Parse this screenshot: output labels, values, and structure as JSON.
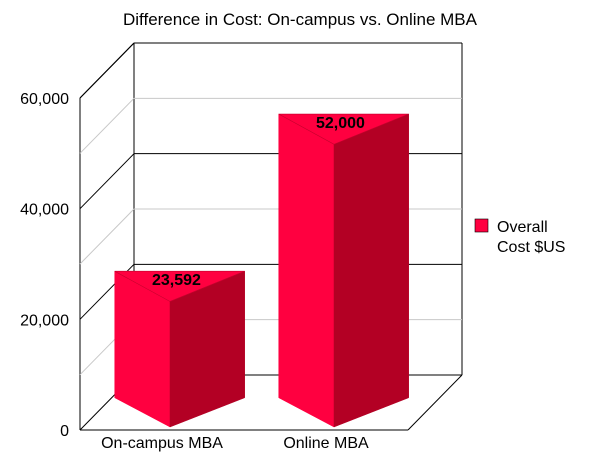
{
  "chart_data": {
    "type": "bar",
    "title": "Difference in Cost: On-campus vs. Online MBA",
    "categories": [
      "On-campus MBA",
      "Online MBA"
    ],
    "series": [
      {
        "name": "Overall Cost $US",
        "values": [
          23592,
          52000
        ],
        "data_labels": [
          "23,592",
          "52,000"
        ]
      }
    ],
    "legend": {
      "placement": "right",
      "lines": [
        "Overall",
        "Cost $US"
      ]
    },
    "ylim": [
      0,
      60000
    ],
    "yticks": [
      {
        "value": 0,
        "label": "0"
      },
      {
        "value": 20000,
        "label": "20,000"
      },
      {
        "value": 40000,
        "label": "40,000"
      },
      {
        "value": 60000,
        "label": "60,000"
      }
    ],
    "grid": true,
    "colors": {
      "bar_front": "#ff0040",
      "bar_side": "#b30024",
      "bar_top": "#ff0040"
    }
  }
}
